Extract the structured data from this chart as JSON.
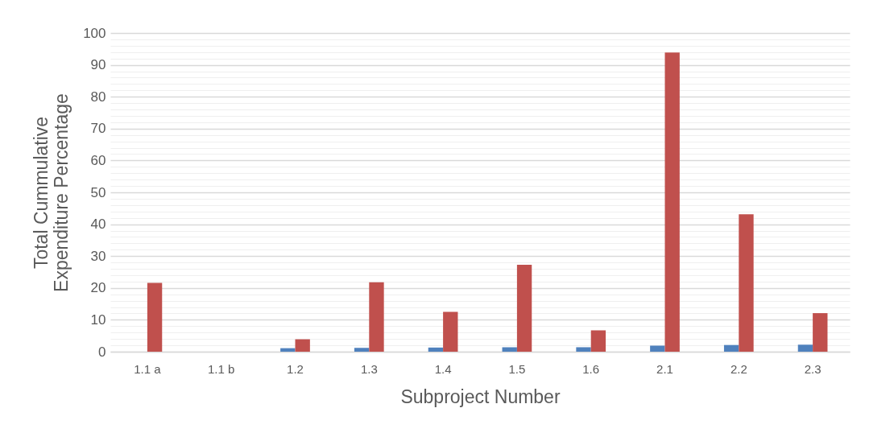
{
  "chart_data": {
    "type": "bar",
    "xlabel": "Subproject Number",
    "ylabel": "Total Cummulative Expenditure Percentage",
    "categories": [
      "1.1 a",
      "1.1 b",
      "1.2",
      "1.3",
      "1.4",
      "1.5",
      "1.6",
      "2.1",
      "2.2",
      "2.3"
    ],
    "series": [
      {
        "color": "#4f81bd",
        "values": [
          0,
          0,
          1.1,
          1.2,
          1.3,
          1.4,
          1.4,
          1.9,
          2.1,
          2.2
        ]
      },
      {
        "color": "#c0504d",
        "values": [
          21.6,
          0,
          3.9,
          21.8,
          12.5,
          27.3,
          6.7,
          93.9,
          43.1,
          12.1
        ]
      }
    ],
    "ylim": [
      0,
      100
    ],
    "yticks": [
      0,
      {
        "value": 2,
        "label": null
      },
      {
        "value": 4,
        "label": null
      },
      {
        "value": 6,
        "label": null
      },
      {
        "value": 8,
        "label": null
      },
      10,
      {
        "value": 12,
        "label": null
      },
      {
        "value": 14,
        "label": null
      },
      {
        "value": 16,
        "label": null
      },
      {
        "value": 18,
        "label": null
      },
      20,
      {
        "value": 22,
        "label": null
      },
      {
        "value": 24,
        "label": null
      },
      {
        "value": 26,
        "label": null
      },
      {
        "value": 28,
        "label": null
      },
      30,
      {
        "value": 32,
        "label": null
      },
      {
        "value": 34,
        "label": null
      },
      {
        "value": 36,
        "label": null
      },
      {
        "value": 38,
        "label": null
      },
      40,
      {
        "value": 42,
        "label": null
      },
      {
        "value": 44,
        "label": null
      },
      {
        "value": 46,
        "label": null
      },
      {
        "value": 48,
        "label": null
      },
      50,
      {
        "value": 52,
        "label": null
      },
      {
        "value": 54,
        "label": null
      },
      {
        "value": 56,
        "label": null
      },
      {
        "value": 58,
        "label": null
      },
      60,
      {
        "value": 62,
        "label": null
      },
      {
        "value": 64,
        "label": null
      },
      {
        "value": 66,
        "label": null
      },
      {
        "value": 68,
        "label": null
      },
      70,
      {
        "value": 72,
        "label": null
      },
      {
        "value": 74,
        "label": null
      },
      {
        "value": 76,
        "label": null
      },
      {
        "value": 78,
        "label": null
      },
      80,
      {
        "value": 82,
        "label": null
      },
      {
        "value": 84,
        "label": null
      },
      {
        "value": 86,
        "label": null
      },
      {
        "value": 88,
        "label": null
      },
      90,
      {
        "value": 92,
        "label": null
      },
      {
        "value": 94,
        "label": null
      },
      {
        "value": 96,
        "label": null
      },
      {
        "value": 98,
        "label": null
      },
      100
    ],
    "grid": "y"
  }
}
